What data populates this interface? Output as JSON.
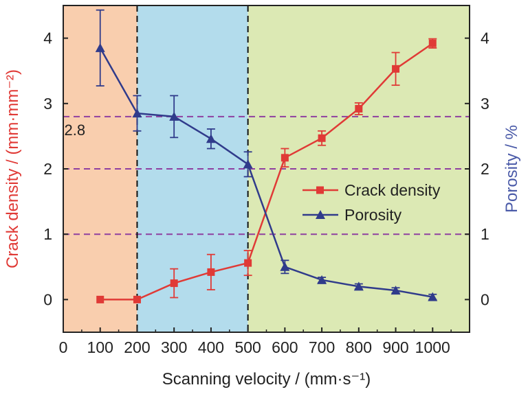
{
  "chart_data": {
    "type": "line",
    "title": "",
    "xlabel": "Scanning velocity / (mm·s⁻¹)",
    "ylabel_left": "Crack density / (mm·mm⁻²)",
    "ylabel_right": "Porosity / %",
    "xlim": [
      0,
      1100
    ],
    "ylim": [
      -0.5,
      4.5
    ],
    "x_ticks": [
      0,
      100,
      200,
      300,
      400,
      500,
      600,
      700,
      800,
      900,
      1000
    ],
    "y_ticks": [
      0,
      1,
      2,
      3,
      4
    ],
    "grid": false,
    "legend_position": "center-right",
    "regions": [
      {
        "x_start": 0,
        "x_end": 200,
        "color": "#f9ceae"
      },
      {
        "x_start": 200,
        "x_end": 500,
        "color": "#b3dcec"
      },
      {
        "x_start": 500,
        "x_end": 1100,
        "color": "#dce9b4"
      }
    ],
    "vertical_dashed_lines": [
      200,
      500
    ],
    "horizontal_dashed_lines": [
      2.8,
      2,
      1
    ],
    "annotations": [
      {
        "text": "2.8",
        "x": 40,
        "y": 2.6
      }
    ],
    "series": [
      {
        "name": "Crack density",
        "axis": "left",
        "color": "#e03a36",
        "marker": "square",
        "x": [
          100,
          200,
          300,
          400,
          500,
          600,
          700,
          800,
          900,
          1000
        ],
        "values": [
          0.0,
          0.0,
          0.25,
          0.42,
          0.56,
          2.17,
          2.47,
          2.92,
          3.53,
          3.92
        ],
        "errors": [
          0,
          0,
          0.22,
          0.27,
          0.19,
          0.14,
          0.11,
          0.09,
          0.25,
          0.07
        ]
      },
      {
        "name": "Porosity",
        "axis": "right",
        "color": "#303b8b",
        "marker": "triangle",
        "x": [
          100,
          200,
          300,
          400,
          500,
          600,
          700,
          800,
          900,
          1000
        ],
        "values": [
          3.85,
          2.85,
          2.8,
          2.46,
          2.07,
          0.5,
          0.3,
          0.2,
          0.14,
          0.04
        ],
        "errors": [
          0.58,
          0.27,
          0.32,
          0.15,
          0.19,
          0.1,
          0.04,
          0.04,
          0.04,
          0.04
        ]
      }
    ]
  }
}
